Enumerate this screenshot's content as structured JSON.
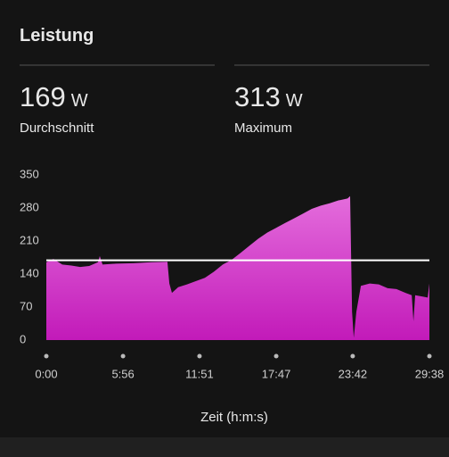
{
  "chart_data": {
    "type": "area",
    "title": "Leistung",
    "stats": [
      {
        "value": 169,
        "unit": "W",
        "label": "Durchschnitt"
      },
      {
        "value": 313,
        "unit": "W",
        "label": "Maximum"
      }
    ],
    "x_label": "Zeit (h:m:s)",
    "x": [
      0,
      33,
      74,
      116,
      157,
      199,
      240,
      248,
      261,
      323,
      405,
      488,
      562,
      571,
      583,
      612,
      653,
      695,
      736,
      778,
      819,
      860,
      902,
      943,
      984,
      1026,
      1067,
      1108,
      1150,
      1191,
      1232,
      1274,
      1315,
      1356,
      1398,
      1410,
      1419,
      1427,
      1439,
      1460,
      1501,
      1543,
      1584,
      1625,
      1667,
      1696,
      1704,
      1712,
      1749,
      1770,
      1778
    ],
    "series": [
      {
        "color": "#d63fcf",
        "values": [
          165,
          172,
          160,
          158,
          155,
          157,
          165,
          178,
          160,
          162,
          163,
          165,
          166,
          120,
          100,
          112,
          118,
          125,
          132,
          145,
          160,
          170,
          185,
          200,
          215,
          228,
          238,
          248,
          258,
          268,
          278,
          285,
          290,
          296,
          300,
          305,
          60,
          5,
          60,
          115,
          120,
          118,
          110,
          108,
          100,
          95,
          40,
          95,
          92,
          90,
          120
        ]
      }
    ],
    "xlim": [
      0,
      1778
    ],
    "xticks": [
      {
        "value": 0,
        "label": "0:00"
      },
      {
        "value": 356,
        "label": "5:56"
      },
      {
        "value": 711,
        "label": "11:51"
      },
      {
        "value": 1067,
        "label": "17:47"
      },
      {
        "value": 1422,
        "label": "23:42"
      },
      {
        "value": 1778,
        "label": "29:38"
      }
    ],
    "ylim": [
      0,
      350
    ],
    "yticks": [
      0,
      70,
      140,
      210,
      280,
      350
    ],
    "grid": false
  }
}
